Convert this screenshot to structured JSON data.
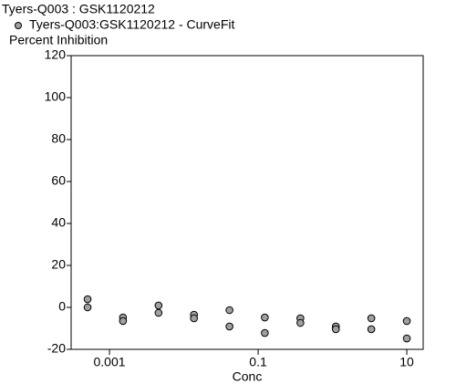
{
  "chart_data": {
    "type": "scatter",
    "title": "Tyers-Q003  :  GSK1120212",
    "y_label": "Percent Inhibition",
    "x_label": "Conc",
    "xscale": "log",
    "xlim": [
      0.000305,
      16.6
    ],
    "ylim": [
      -20,
      120
    ],
    "xticks": [
      0.001,
      0.1,
      10
    ],
    "yticks": [
      -20,
      0,
      20,
      40,
      60,
      80,
      100,
      120
    ],
    "series": [
      {
        "name": "Tyers-Q003:GSK1120212 - CurveFit",
        "color": "#a0a0a0",
        "x": [
          0.000508,
          0.000508,
          0.00152,
          0.00152,
          0.00457,
          0.00457,
          0.0137,
          0.0137,
          0.0412,
          0.0412,
          0.123,
          0.123,
          0.37,
          0.37,
          1.11,
          1.11,
          3.33,
          3.33,
          10,
          10
        ],
        "values": [
          3.9,
          0,
          -4.8,
          -6.5,
          0.9,
          -2.6,
          -3.5,
          -5.2,
          -1.3,
          -9.1,
          -4.8,
          -12.2,
          -5.2,
          -7.4,
          -9.1,
          -10.4,
          -5.2,
          -10.4,
          -6.5,
          -14.8
        ]
      }
    ]
  }
}
